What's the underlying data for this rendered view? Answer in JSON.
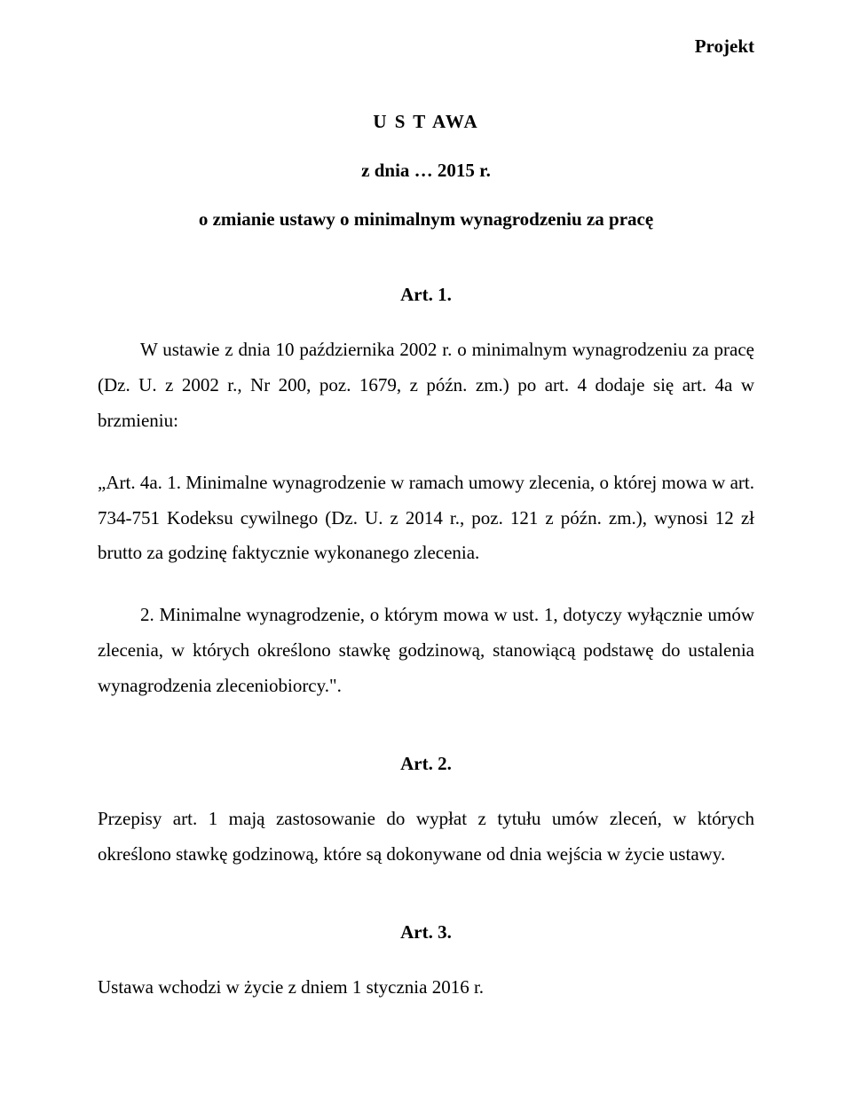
{
  "header_label": "Projekt",
  "act_title": "U S T AWA",
  "act_date": "z dnia … 2015 r.",
  "act_subject": "o zmianie ustawy o minimalnym wynagrodzeniu za pracę",
  "article1_head": "Art. 1.",
  "article1_para1": "W ustawie z dnia 10 października 2002 r. o minimalnym wynagrodzeniu za pracę (Dz. U. z 2002 r., Nr 200, poz. 1679, z późn. zm.) po art. 4 dodaje się art. 4a w brzmieniu:",
  "article1_para2": "„Art. 4a. 1. Minimalne wynagrodzenie w ramach umowy zlecenia, o której mowa w art. 734-751 Kodeksu cywilnego (Dz. U. z 2014 r., poz. 121 z późn. zm.), wynosi 12 zł brutto za godzinę faktycznie wykonanego zlecenia.",
  "article1_para3": "2. Minimalne wynagrodzenie, o którym mowa w ust. 1, dotyczy wyłącznie umów zlecenia, w których określono stawkę godzinową, stanowiącą podstawę do ustalenia wynagrodzenia zleceniobiorcy.\".",
  "article2_head": "Art. 2.",
  "article2_para": "Przepisy art. 1 mają zastosowanie do wypłat z tytułu umów zleceń, w których określono stawkę godzinową, które są dokonywane od dnia wejścia w życie ustawy.",
  "article3_head": "Art. 3.",
  "article3_para": "Ustawa wchodzi w życie z dniem 1 stycznia 2016 r."
}
